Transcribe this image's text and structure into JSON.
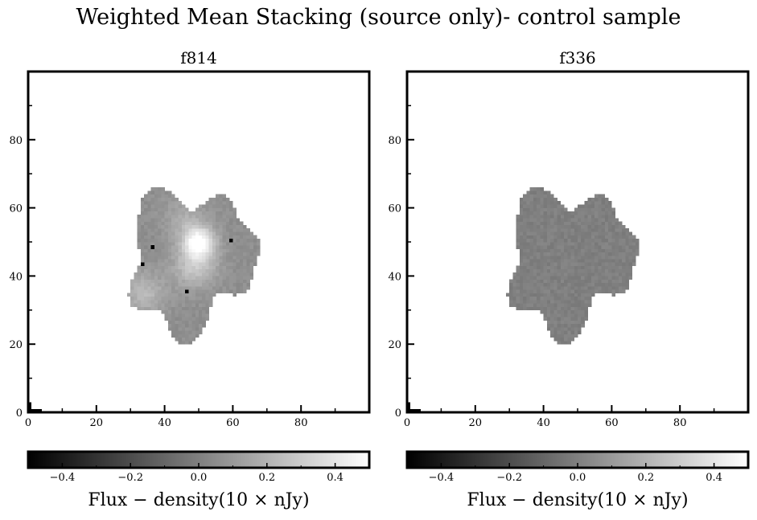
{
  "figure": {
    "suptitle": "Weighted Mean Stacking (source only)- control sample"
  },
  "chart_data": [
    {
      "type": "heatmap",
      "title": "f814",
      "xlim": [
        0,
        100
      ],
      "ylim": [
        0,
        100
      ],
      "xticks": [
        0,
        20,
        40,
        60,
        80
      ],
      "yticks": [
        0,
        20,
        40,
        60,
        80
      ],
      "xlabel": "",
      "ylabel": "",
      "colormap": "gray",
      "vmin": -0.5,
      "vmax": 0.5,
      "colorbar": {
        "ticks": [
          -0.4,
          -0.2,
          0.0,
          0.2,
          0.4
        ],
        "tick_labels": [
          "−0.4",
          "−0.2",
          "0.0",
          "0.2",
          "0.4"
        ],
        "label": "Flux − density(10 × nJy)"
      },
      "source_footprint_center": [
        48,
        47
      ],
      "background_level": 0.06,
      "peaks": [
        {
          "x": 50,
          "y": 50,
          "value": 0.5
        },
        {
          "x": 49,
          "y": 43,
          "value": 0.28
        },
        {
          "x": 34,
          "y": 35,
          "value": 0.22
        },
        {
          "x": 46,
          "y": 57,
          "value": 0.17
        }
      ],
      "dark_pixels": [
        [
          36,
          48
        ],
        [
          59,
          50
        ],
        [
          46,
          35
        ],
        [
          33,
          43
        ]
      ]
    },
    {
      "type": "heatmap",
      "title": "f336",
      "xlim": [
        0,
        100
      ],
      "ylim": [
        0,
        100
      ],
      "xticks": [
        0,
        20,
        40,
        60,
        80
      ],
      "yticks": [
        0,
        20,
        40,
        60,
        80
      ],
      "xlabel": "",
      "ylabel": "",
      "colormap": "gray",
      "vmin": -0.5,
      "vmax": 0.5,
      "colorbar": {
        "ticks": [
          -0.4,
          -0.2,
          0.0,
          0.2,
          0.4
        ],
        "tick_labels": [
          "−0.4",
          "−0.2",
          "0.0",
          "0.2",
          "0.4"
        ],
        "label": "Flux − density(10 × nJy)"
      },
      "source_footprint_center": [
        48,
        47
      ],
      "background_level": 0.0,
      "peaks": [],
      "dark_pixels": []
    }
  ]
}
